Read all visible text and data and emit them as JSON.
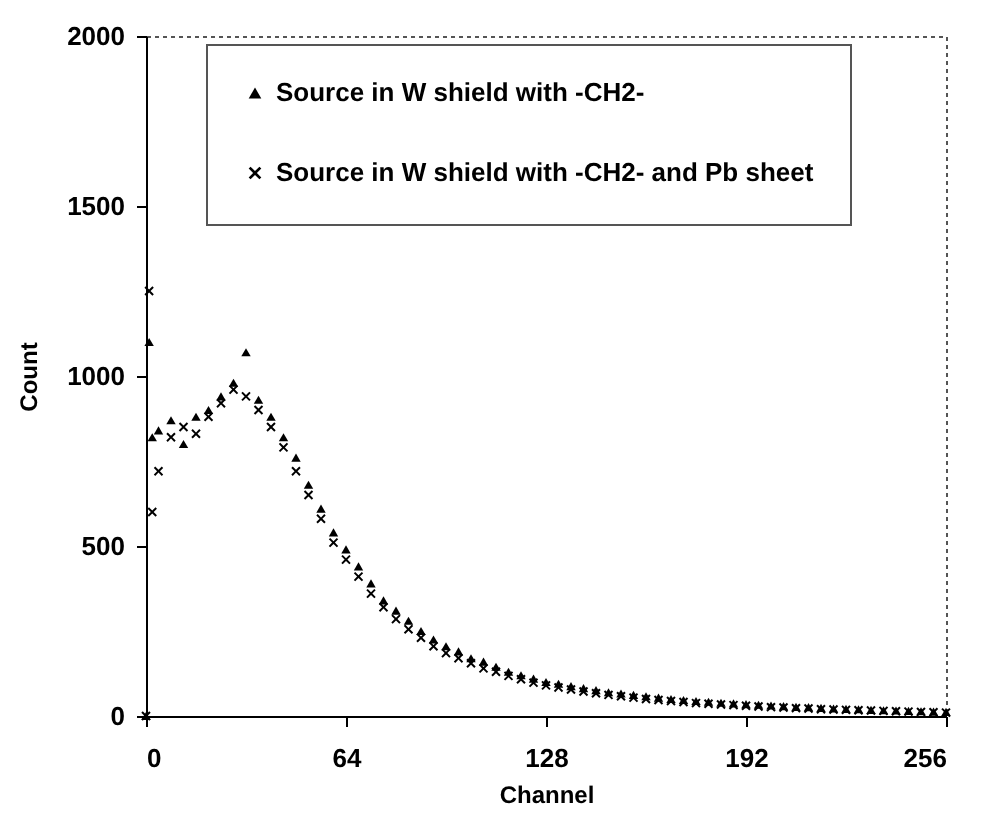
{
  "chart_data": {
    "type": "scatter",
    "xlabel": "Channel",
    "ylabel": "Count",
    "xlim": [
      0,
      256
    ],
    "xticks": [
      0,
      64,
      128,
      192,
      256
    ],
    "ylim": [
      0,
      2000
    ],
    "yticks": [
      0,
      500,
      1000,
      1500,
      2000
    ],
    "grid": false,
    "legend": "top",
    "series": [
      {
        "name": "Source in W shield with -CH2-",
        "color": "#000000",
        "marker": "triangle",
        "x": [
          0,
          1,
          2,
          4,
          8,
          12,
          16,
          20,
          24,
          28,
          32,
          36,
          40,
          44,
          48,
          52,
          56,
          60,
          64,
          68,
          72,
          76,
          80,
          84,
          88,
          92,
          96,
          100,
          104,
          108,
          112,
          116,
          120,
          124,
          128,
          132,
          136,
          140,
          144,
          148,
          152,
          156,
          160,
          164,
          168,
          172,
          176,
          180,
          184,
          188,
          192,
          196,
          200,
          204,
          208,
          212,
          216,
          220,
          224,
          228,
          232,
          236,
          240,
          244,
          248,
          252,
          256
        ],
        "values": [
          0,
          1100,
          820,
          840,
          870,
          800,
          880,
          900,
          940,
          980,
          1070,
          930,
          880,
          820,
          760,
          680,
          610,
          540,
          490,
          440,
          390,
          340,
          310,
          280,
          250,
          225,
          205,
          190,
          170,
          160,
          145,
          130,
          120,
          110,
          100,
          95,
          88,
          82,
          76,
          70,
          66,
          62,
          58,
          54,
          50,
          47,
          44,
          42,
          39,
          37,
          35,
          33,
          31,
          29,
          27,
          26,
          24,
          22,
          21,
          20,
          18,
          17,
          16,
          15,
          14,
          13,
          12
        ]
      },
      {
        "name": "Source in W shield with -CH2- and Pb sheet",
        "color": "#000000",
        "marker": "cross",
        "x": [
          0,
          1,
          2,
          4,
          8,
          12,
          16,
          20,
          24,
          28,
          32,
          36,
          40,
          44,
          48,
          52,
          56,
          60,
          64,
          68,
          72,
          76,
          80,
          84,
          88,
          92,
          96,
          100,
          104,
          108,
          112,
          116,
          120,
          124,
          128,
          132,
          136,
          140,
          144,
          148,
          152,
          156,
          160,
          164,
          168,
          172,
          176,
          180,
          184,
          188,
          192,
          196,
          200,
          204,
          208,
          212,
          216,
          220,
          224,
          228,
          232,
          236,
          240,
          244,
          248,
          252,
          256
        ],
        "values": [
          0,
          1250,
          600,
          720,
          820,
          850,
          830,
          880,
          920,
          960,
          940,
          900,
          850,
          790,
          720,
          650,
          580,
          510,
          460,
          410,
          360,
          320,
          285,
          255,
          230,
          205,
          185,
          170,
          155,
          140,
          130,
          118,
          108,
          98,
          90,
          84,
          78,
          72,
          67,
          62,
          58,
          54,
          50,
          47,
          44,
          41,
          38,
          36,
          34,
          32,
          30,
          28,
          26,
          25,
          23,
          22,
          20,
          19,
          18,
          17,
          16,
          15,
          14,
          13,
          12,
          11,
          10
        ]
      }
    ]
  }
}
